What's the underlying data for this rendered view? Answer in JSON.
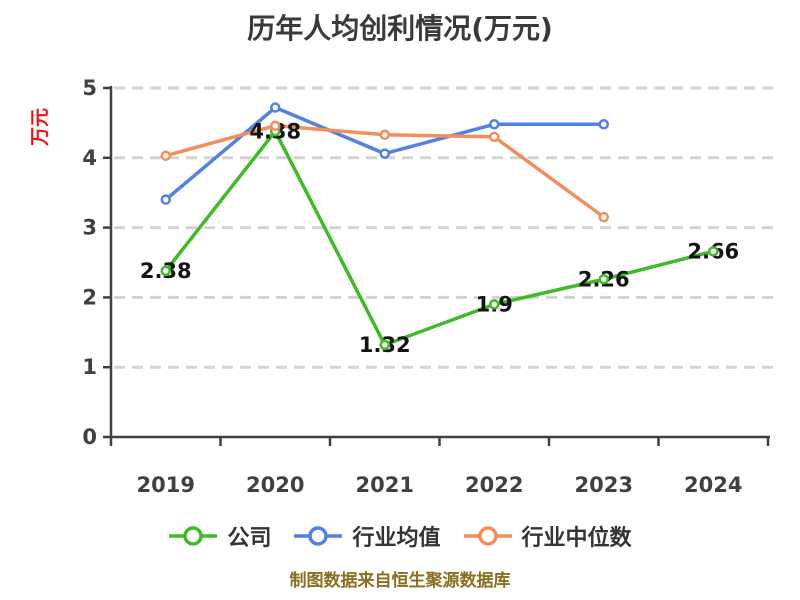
{
  "title": "历年人均创利情况(万元)",
  "footer_note": "制图数据来自恒生聚源数据库",
  "y_axis_unit_label": "万元",
  "colors": {
    "company": "#3ebb27",
    "industry_mean": "#5181e4",
    "industry_median": "#f28e5c",
    "grid": "#d3d3d3",
    "axis": "#3f3f3f",
    "title_text": "#3a3a3a",
    "tick_text": "#404040",
    "data_label_text": "#141414",
    "y_unit_text": "#ee1111",
    "footer_text": "#8a6d1f",
    "background": "#ffffff"
  },
  "chart_data": {
    "type": "line",
    "title": "历年人均创利情况(万元)",
    "xlabel": "",
    "ylabel": "万元",
    "categories": [
      "2019",
      "2020",
      "2021",
      "2022",
      "2023",
      "2024"
    ],
    "series": [
      {
        "name": "公司",
        "color": "#3ebb27",
        "values": [
          2.38,
          4.38,
          1.32,
          1.9,
          2.26,
          2.66
        ],
        "point_labels": [
          "2.38",
          "4.38",
          "1.32",
          "1.9",
          "2.26",
          "2.66"
        ]
      },
      {
        "name": "行业均值",
        "color": "#5181e4",
        "values": [
          3.4,
          4.72,
          4.06,
          4.48,
          4.48,
          null
        ]
      },
      {
        "name": "行业中位数",
        "color": "#f28e5c",
        "values": [
          4.03,
          4.46,
          4.33,
          4.3,
          3.15,
          null
        ]
      }
    ],
    "ylim": [
      0,
      5
    ],
    "yticks": [
      0,
      1,
      2,
      3,
      4,
      5
    ],
    "grid": "horizontal-dashed",
    "legend_position": "bottom",
    "marker": "circle-white-fill"
  }
}
